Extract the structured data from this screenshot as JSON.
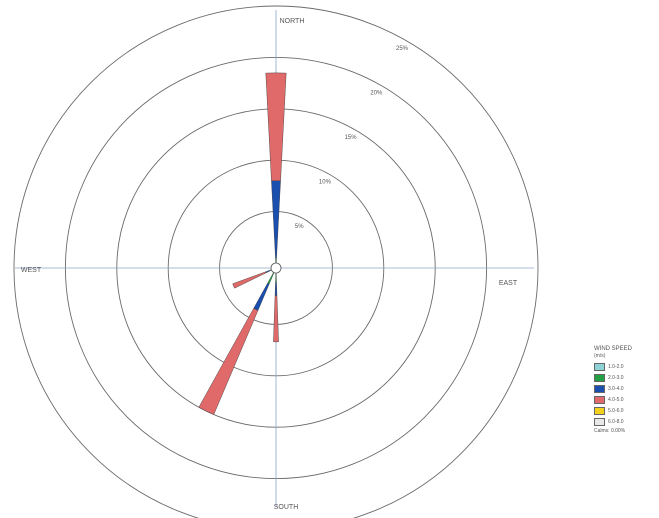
{
  "colors": {
    "ring": "#6b6b6b",
    "axis": "#8aa6c8",
    "label": "#555555",
    "background": "#ffffff"
  },
  "chart_data": {
    "type": "polar-bar",
    "title": "",
    "directions": {
      "north": "NORTH",
      "south": "SOUTH",
      "east": "EAST",
      "west": "WEST"
    },
    "rings": [
      5,
      10,
      15,
      20,
      25
    ],
    "ring_labels": [
      "5%",
      "10%",
      "15%",
      "20%",
      "25%"
    ],
    "max_frequency": 25,
    "bins": [
      {
        "name": "1.0-2.0",
        "color": "#8fd3d6"
      },
      {
        "name": "2.0-3.0",
        "color": "#22a043"
      },
      {
        "name": "3.0-4.0",
        "color": "#1a4fb0"
      },
      {
        "name": "4.0-5.0",
        "color": "#e06a6a"
      },
      {
        "name": "5.0-6.0",
        "color": "#f2d21e"
      },
      {
        "name": "6.0-8.0",
        "color": "#e8e8e8"
      }
    ],
    "petals": [
      {
        "direction_deg": 0,
        "width_deg": 6,
        "values": [
          0,
          0.5,
          7.5,
          10.5,
          0,
          0
        ]
      },
      {
        "direction_deg": 180,
        "width_deg": 4,
        "values": [
          0,
          0.9,
          1.3,
          4.5,
          0,
          0
        ]
      },
      {
        "direction_deg": 206,
        "width_deg": 6,
        "values": [
          0,
          1.2,
          2.8,
          11.0,
          0,
          0
        ]
      },
      {
        "direction_deg": 247,
        "width_deg": 6,
        "values": [
          0,
          0,
          0.6,
          3.4,
          0,
          0
        ]
      }
    ],
    "legend": {
      "title": "WIND SPEED",
      "units": "(m/s)",
      "calms": "Calms: 0.00%"
    },
    "grid": true,
    "legend_position": "bottom-right"
  }
}
